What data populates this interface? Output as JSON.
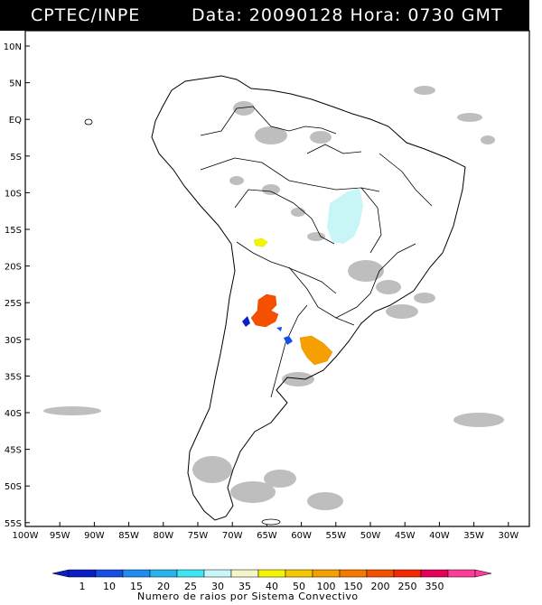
{
  "header": {
    "source": "CPTEC/INPE",
    "datetime": "Data: 20090128 Hora: 0730 GMT"
  },
  "map": {
    "lat_labels": [
      "10N",
      "5N",
      "EQ",
      "5S",
      "10S",
      "15S",
      "20S",
      "25S",
      "30S",
      "35S",
      "40S",
      "45S",
      "50S",
      "55S"
    ],
    "lon_labels": [
      "100W",
      "95W",
      "90W",
      "85W",
      "80W",
      "75W",
      "70W",
      "65W",
      "60W",
      "55W",
      "50W",
      "45W",
      "40W",
      "35W",
      "30W"
    ],
    "region": "South America"
  },
  "colorbar": {
    "ticks": [
      "1",
      "10",
      "15",
      "20",
      "25",
      "30",
      "35",
      "40",
      "50",
      "100",
      "150",
      "200",
      "250",
      "350"
    ],
    "colors": [
      "#0a1ec8",
      "#1450e6",
      "#1e8cf0",
      "#28b4f0",
      "#3ce6f0",
      "#c8f5f5",
      "#f5f5c8",
      "#f5f500",
      "#f5c800",
      "#f5a000",
      "#f57800",
      "#f55000",
      "#f52800",
      "#e6005a",
      "#ff3c96"
    ],
    "caption": "Numero de raios por Sistema Convectivo"
  }
}
